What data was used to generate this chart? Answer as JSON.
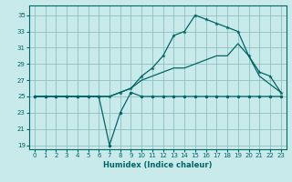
{
  "xlabel": "Humidex (Indice chaleur)",
  "bg_color": "#c8eaea",
  "grid_color": "#8fbfbf",
  "line_color": "#006666",
  "xlim": [
    -0.5,
    23.5
  ],
  "ylim": [
    18.5,
    36.2
  ],
  "xticks": [
    0,
    1,
    2,
    3,
    4,
    5,
    6,
    7,
    8,
    9,
    10,
    11,
    12,
    13,
    14,
    15,
    16,
    17,
    18,
    19,
    20,
    21,
    22,
    23
  ],
  "yticks": [
    19,
    21,
    23,
    25,
    27,
    29,
    31,
    33,
    35
  ],
  "line1_x": [
    0,
    1,
    2,
    3,
    4,
    5,
    6,
    7,
    8,
    9,
    10,
    11,
    12,
    13,
    14,
    15,
    16,
    17,
    18,
    19,
    20,
    21,
    22,
    23
  ],
  "line1_y": [
    25,
    25,
    25,
    25,
    25,
    25,
    25,
    19,
    23,
    25.5,
    25,
    25,
    25,
    25,
    25,
    25,
    25,
    25,
    25,
    25,
    25,
    25,
    25,
    25
  ],
  "line2_x": [
    0,
    1,
    2,
    3,
    4,
    5,
    6,
    7,
    8,
    9,
    10,
    11,
    12,
    13,
    14,
    15,
    16,
    17,
    18,
    19,
    20,
    21,
    22,
    23
  ],
  "line2_y": [
    25,
    25,
    25,
    25,
    25,
    25,
    25,
    25,
    25.5,
    26,
    27,
    27.5,
    28,
    28.5,
    28.5,
    29,
    29.5,
    30,
    30,
    31.5,
    30,
    27.5,
    26.5,
    25.5
  ],
  "line3_x": [
    0,
    1,
    2,
    3,
    4,
    5,
    6,
    7,
    8,
    9,
    10,
    11,
    12,
    13,
    14,
    15,
    16,
    17,
    18,
    19,
    20,
    21,
    22,
    23
  ],
  "line3_y": [
    25,
    25,
    25,
    25,
    25,
    25,
    25,
    25,
    25.5,
    26,
    27.5,
    28.5,
    30,
    32.5,
    33,
    35,
    34.5,
    34,
    33.5,
    33,
    30,
    28,
    27.5,
    25.5
  ]
}
